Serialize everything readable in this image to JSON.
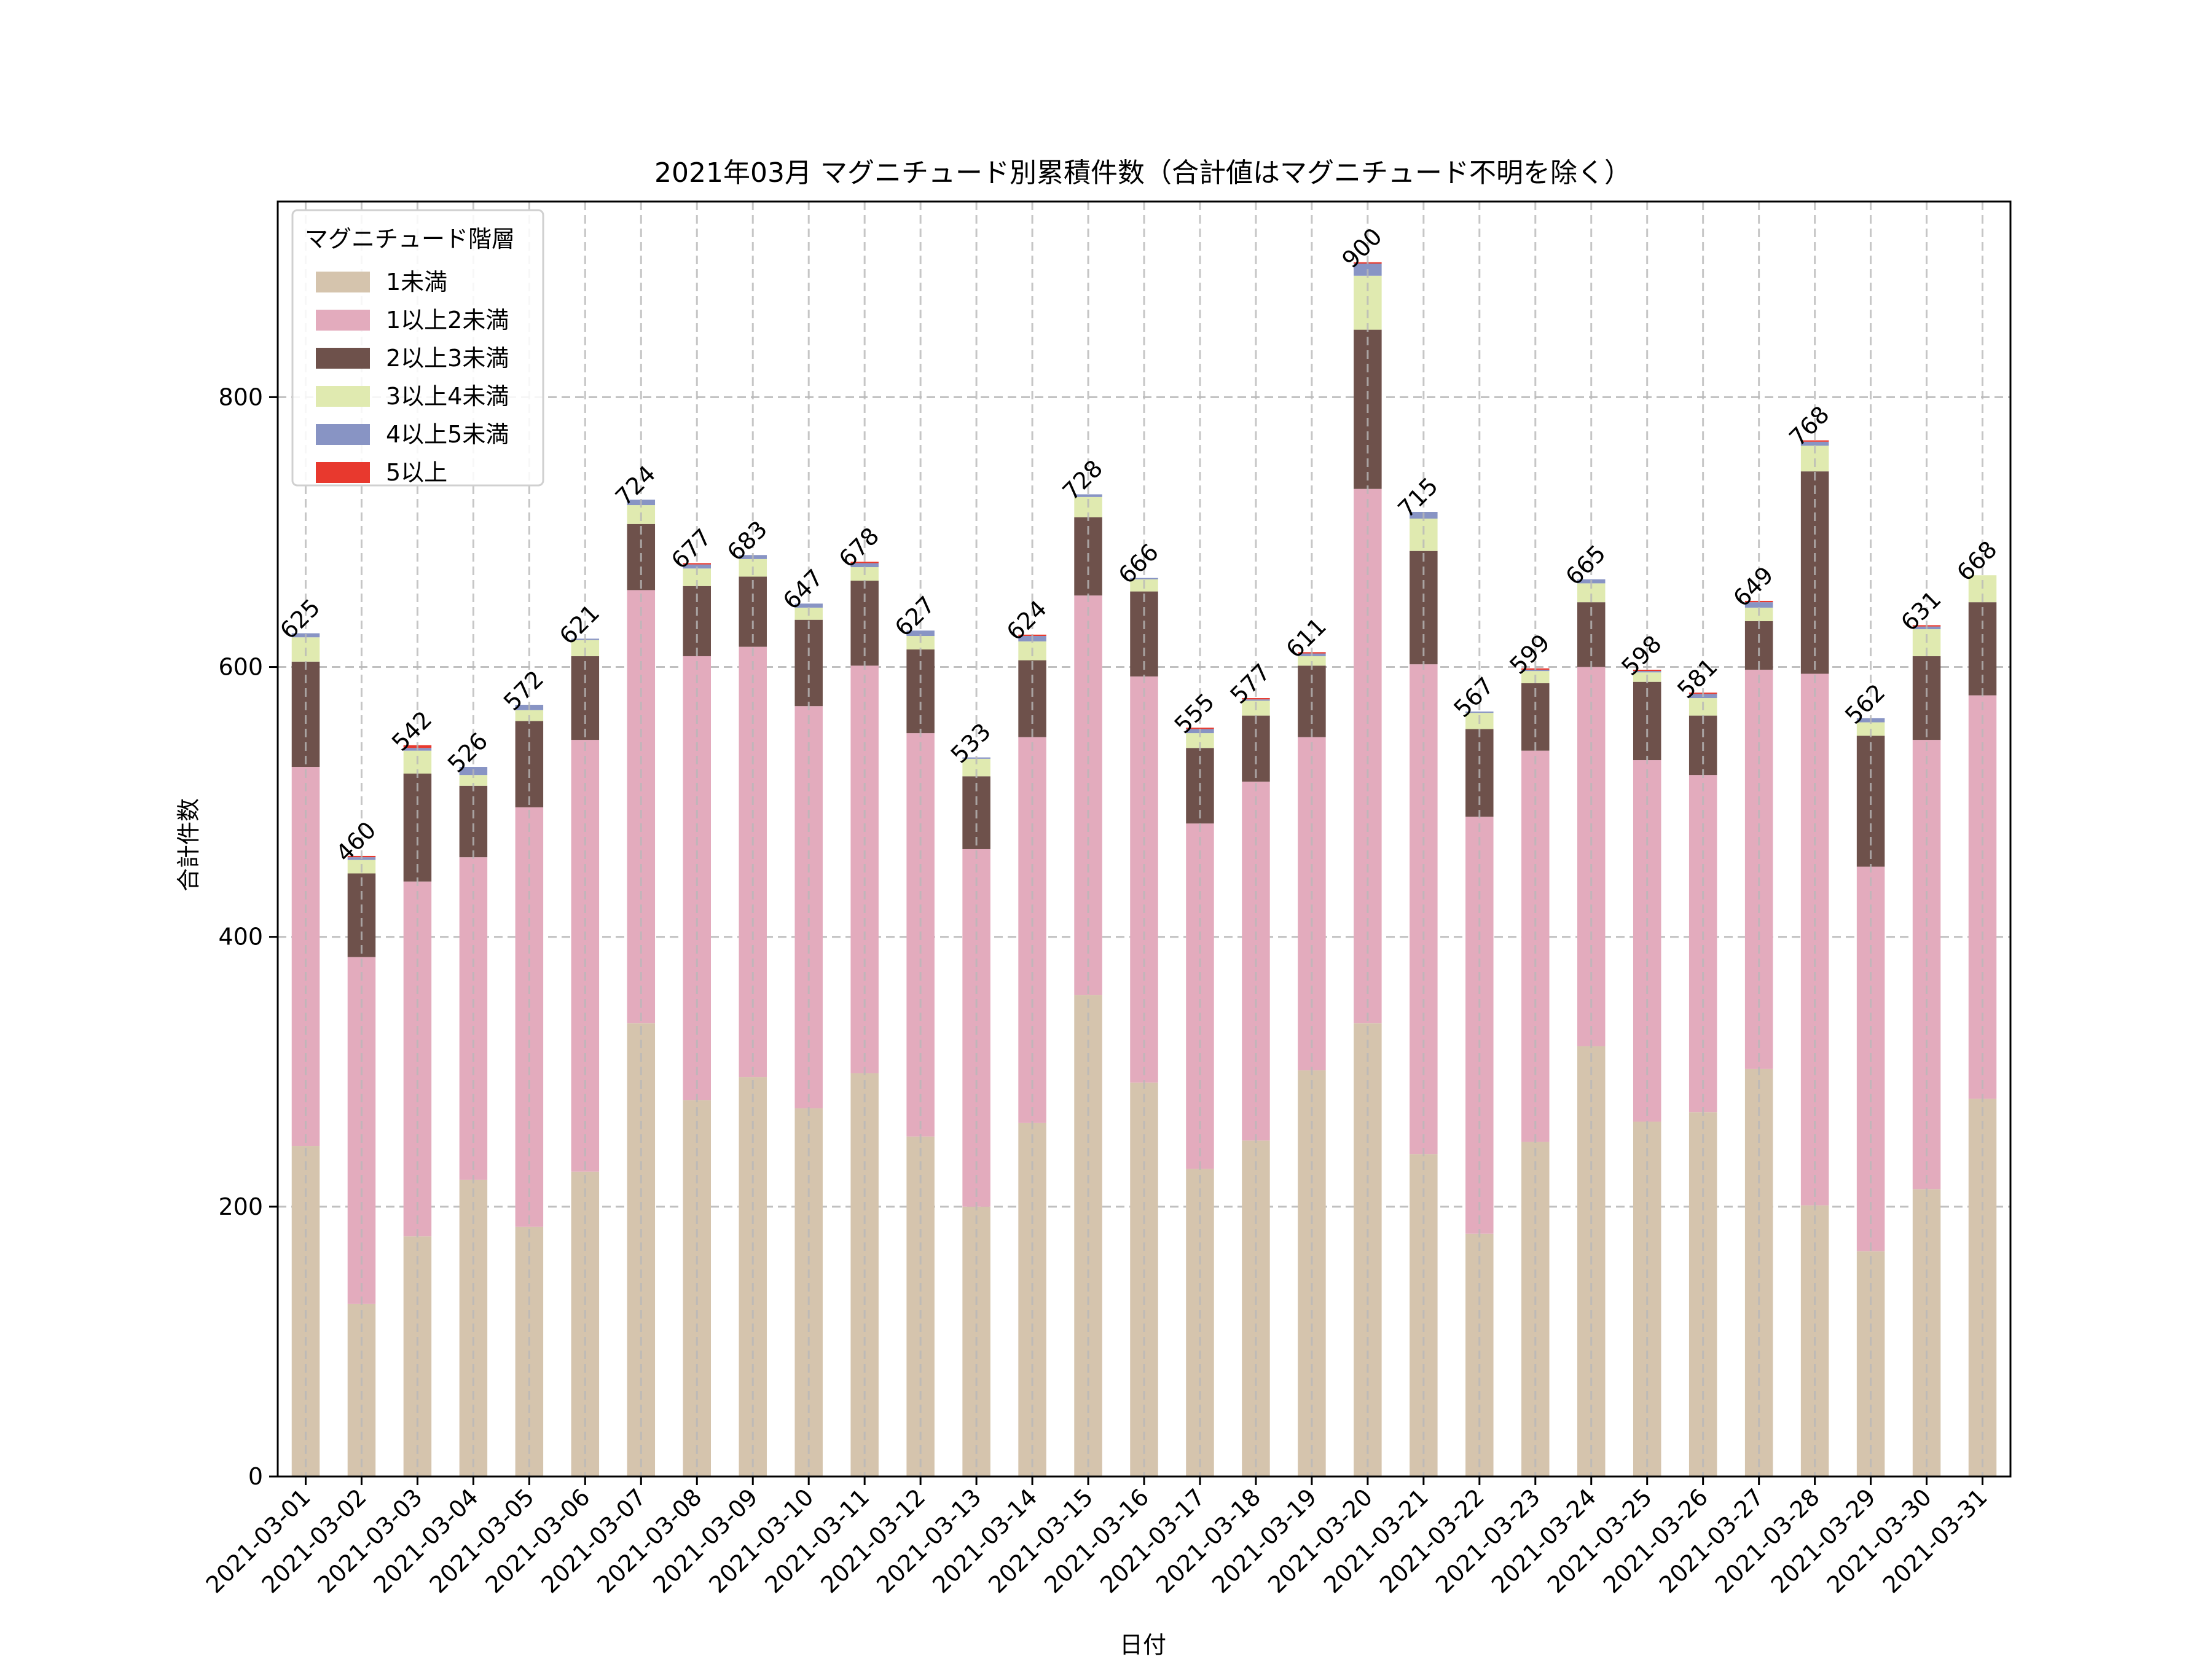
{
  "chart_data": {
    "type": "bar",
    "stacked": true,
    "title": "2021年03月 マグニチュード別累積件数（合計値はマグニチュード不明を除く）",
    "xlabel": "日付",
    "ylabel": "合計件数",
    "ylim": [
      0,
      945
    ],
    "yticks": [
      0,
      200,
      400,
      600,
      800
    ],
    "grid": true,
    "legend": {
      "title": "マグニチュード階層",
      "placement": "top-left"
    },
    "categories": [
      "2021-03-01",
      "2021-03-02",
      "2021-03-03",
      "2021-03-04",
      "2021-03-05",
      "2021-03-06",
      "2021-03-07",
      "2021-03-08",
      "2021-03-09",
      "2021-03-10",
      "2021-03-11",
      "2021-03-12",
      "2021-03-13",
      "2021-03-14",
      "2021-03-15",
      "2021-03-16",
      "2021-03-17",
      "2021-03-18",
      "2021-03-19",
      "2021-03-20",
      "2021-03-21",
      "2021-03-22",
      "2021-03-23",
      "2021-03-24",
      "2021-03-25",
      "2021-03-26",
      "2021-03-27",
      "2021-03-28",
      "2021-03-29",
      "2021-03-30",
      "2021-03-31"
    ],
    "totals": [
      625,
      460,
      542,
      526,
      572,
      621,
      724,
      677,
      683,
      647,
      678,
      627,
      533,
      624,
      728,
      666,
      555,
      577,
      611,
      900,
      715,
      567,
      599,
      665,
      598,
      581,
      649,
      768,
      562,
      631,
      668
    ],
    "series": [
      {
        "name": "1未満",
        "color": "#d5c4ad",
        "values": [
          245,
          128,
          178,
          220,
          185,
          226,
          336,
          279,
          296,
          273,
          299,
          252,
          200,
          262,
          357,
          292,
          228,
          249,
          301,
          336,
          239,
          180,
          248,
          319,
          263,
          270,
          302,
          201,
          167,
          213,
          280
        ]
      },
      {
        "name": "1以上2未満",
        "color": "#e3abbd",
        "values": [
          281,
          257,
          263,
          239,
          311,
          320,
          321,
          329,
          319,
          298,
          302,
          299,
          265,
          286,
          296,
          301,
          256,
          266,
          247,
          396,
          363,
          309,
          290,
          281,
          268,
          250,
          296,
          394,
          285,
          333,
          299
        ]
      },
      {
        "name": "2以上3未満",
        "color": "#6e514b",
        "values": [
          78,
          62,
          80,
          53,
          64,
          62,
          49,
          52,
          52,
          64,
          63,
          62,
          54,
          57,
          58,
          63,
          56,
          49,
          53,
          118,
          84,
          65,
          50,
          48,
          58,
          44,
          36,
          150,
          97,
          62,
          69
        ]
      },
      {
        "name": "3以上4未満",
        "color": "#e0eab0",
        "values": [
          18,
          10,
          17,
          8,
          8,
          12,
          14,
          13,
          13,
          9,
          10,
          10,
          13,
          14,
          15,
          9,
          11,
          11,
          7,
          40,
          24,
          12,
          9,
          14,
          7,
          13,
          10,
          19,
          10,
          20,
          20
        ]
      },
      {
        "name": "4以上5未満",
        "color": "#8894c4",
        "values": [
          3,
          2,
          2,
          6,
          4,
          1,
          4,
          3,
          3,
          3,
          3,
          4,
          1,
          4,
          2,
          1,
          3,
          1,
          2,
          9,
          5,
          1,
          1,
          3,
          1,
          3,
          4,
          3,
          3,
          2,
          0
        ]
      },
      {
        "name": "5以上",
        "color": "#e8392e",
        "values": [
          0,
          1,
          2,
          0,
          0,
          0,
          0,
          1,
          0,
          0,
          1,
          0,
          0,
          1,
          0,
          0,
          1,
          1,
          1,
          1,
          0,
          0,
          1,
          0,
          1,
          1,
          1,
          1,
          0,
          1,
          0
        ]
      }
    ]
  }
}
